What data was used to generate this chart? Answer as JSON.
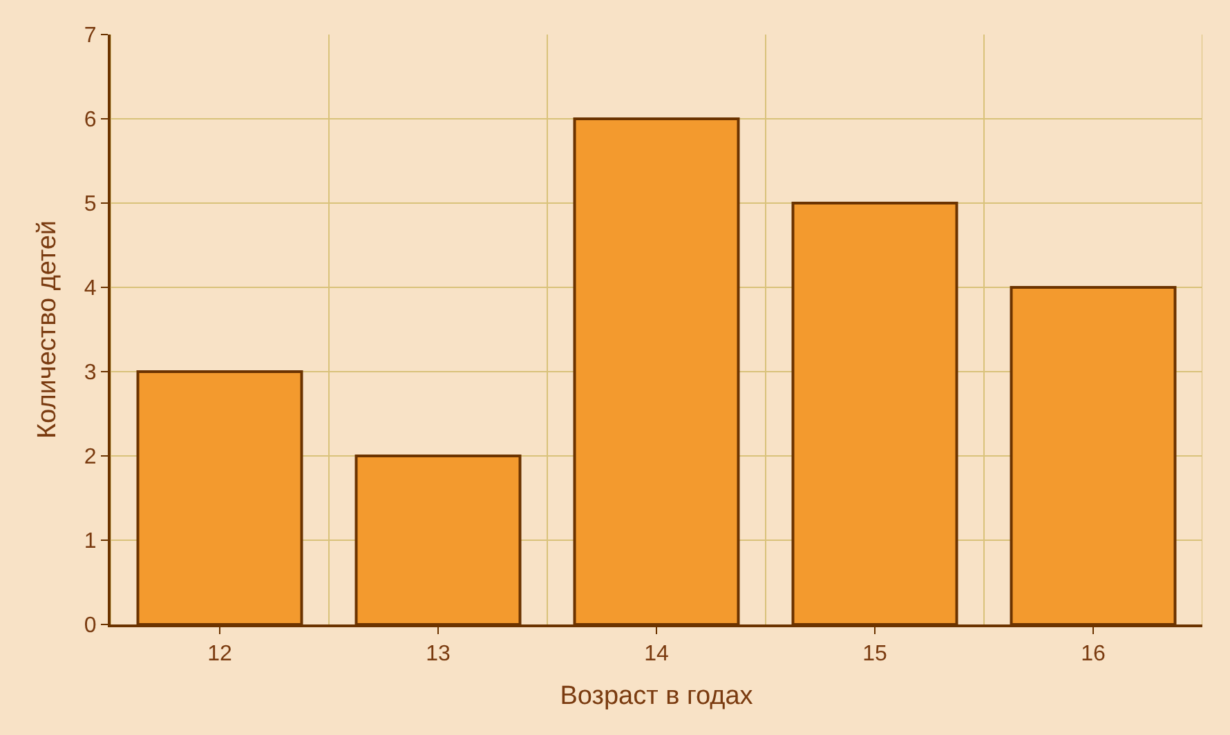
{
  "chart_data": {
    "type": "bar",
    "xlabel": "Возраст в годах",
    "ylabel": "Количество детей",
    "categories": [
      "12",
      "13",
      "14",
      "15",
      "16"
    ],
    "values": [
      3,
      2,
      6,
      5,
      4
    ],
    "color": "#f39a2e",
    "ylim": [
      0,
      7
    ],
    "yticks": [
      0,
      1,
      2,
      3,
      4,
      5,
      6,
      7
    ],
    "grid": true,
    "legend": false
  }
}
